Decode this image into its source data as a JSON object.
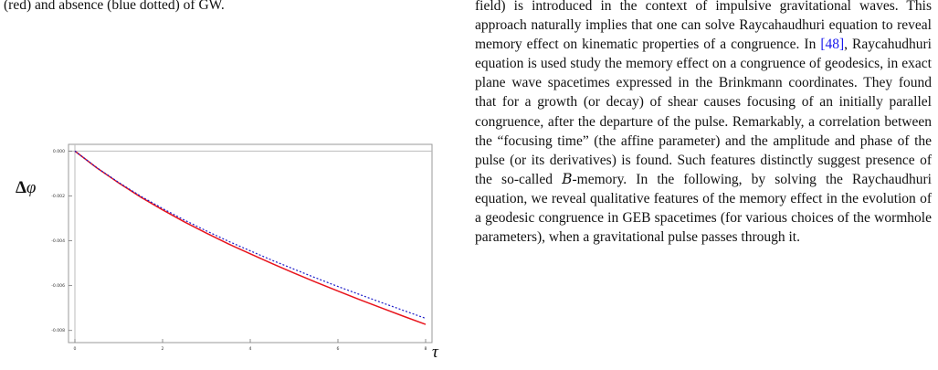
{
  "left": {
    "caption_tail": "(red) and absence (blue dotted) of GW.",
    "y_axis_label_bold": "Δ",
    "y_axis_label_italic": "φ",
    "x_axis_label": "τ"
  },
  "right": {
    "text_before_cite": "field) is introduced in the context of impulsive gravitational waves. This approach naturally implies that one can solve Raycahaudhuri equation to reveal memory effect on kinematic properties of a congruence. In ",
    "cite": "[48]",
    "text_mid": ", Raycahudhuri equation is used study the memory effect on a congruence of geodesics, in exact plane wave spacetimes expressed in the Brinkmann coordinates. They found that for a growth (or decay) of shear causes focusing of an initially parallel congruence, after the departure of the pulse. Remarkably, a correlation between the “focusing time” (the affine parameter) and the amplitude and phase of the pulse (or its derivatives) is found. Such features distinctly suggest presence of the so-called ",
    "b_memory_letter": "B",
    "text_after": "-memory. In the following, by solving the Raychaudhuri equation, we reveal qualitative features of the memory effect in the evolution of a geodesic congruence in GEB spacetimes (for various choices of the wormhole parameters), when a gravitational pulse passes through it."
  },
  "colors": {
    "with_gw": "#e8141c",
    "without_gw": "#1c1cc8",
    "frame": "#999999"
  },
  "chart_data": {
    "type": "line",
    "xlim": [
      0,
      8
    ],
    "ylim": [
      -0.0085,
      0.0003
    ],
    "x_ticks": [
      0,
      2,
      4,
      6,
      8
    ],
    "y_ticks": [
      0.0,
      -0.002,
      -0.004,
      -0.006,
      -0.008
    ],
    "x_tick_labels": [
      "0",
      "2",
      "4",
      "6",
      "8"
    ],
    "y_tick_labels": [
      "0.000",
      "-0.002",
      "-0.004",
      "-0.006",
      "-0.008"
    ],
    "xlabel": "τ",
    "ylabel": "Δφ",
    "grid": false,
    "series": [
      {
        "style": "solid",
        "color": "#e8141c",
        "x": [
          0,
          0.5,
          1,
          1.5,
          2,
          2.5,
          3,
          3.5,
          4,
          4.5,
          5,
          5.5,
          6,
          6.5,
          7,
          7.5,
          8
        ],
        "y": [
          0.0,
          -0.00075,
          -0.00142,
          -0.00205,
          -0.00262,
          -0.00316,
          -0.00366,
          -0.00414,
          -0.00458,
          -0.00502,
          -0.00544,
          -0.00585,
          -0.00624,
          -0.00663,
          -0.007,
          -0.00737,
          -0.00773
        ]
      },
      {
        "style": "dotted",
        "color": "#1c1cc8",
        "x": [
          0,
          0.5,
          1,
          1.5,
          2,
          2.5,
          3,
          3.5,
          4,
          4.5,
          5,
          5.5,
          6,
          6.5,
          7,
          7.5,
          8
        ],
        "y": [
          0.0,
          -0.00074,
          -0.0014,
          -0.00201,
          -0.00256,
          -0.00308,
          -0.00356,
          -0.00402,
          -0.00445,
          -0.00487,
          -0.00527,
          -0.00566,
          -0.00604,
          -0.0064,
          -0.00676,
          -0.00711,
          -0.00746
        ]
      }
    ]
  }
}
